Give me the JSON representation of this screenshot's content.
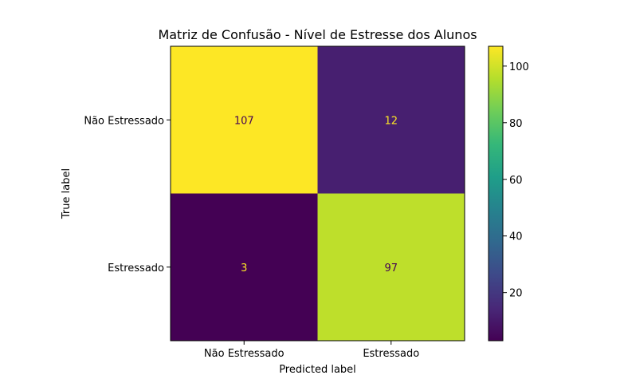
{
  "chart_data": {
    "type": "heatmap",
    "title": "Matriz de Confusão - Nível de Estresse dos Alunos",
    "xlabel": "Predicted label",
    "ylabel": "True label",
    "x_categories": [
      "Não Estressado",
      "Estressado"
    ],
    "y_categories": [
      "Não Estressado",
      "Estressado"
    ],
    "values": [
      [
        107,
        12
      ],
      [
        3,
        97
      ]
    ],
    "colormap": "viridis",
    "colorbar": {
      "range": [
        3,
        107
      ],
      "ticks": [
        20,
        40,
        60,
        80,
        100
      ],
      "tick_labels": [
        "20",
        "40",
        "60",
        "80",
        "100"
      ]
    },
    "cell_text_colors": {
      "light": "#440154",
      "dark": "#fde725"
    }
  }
}
